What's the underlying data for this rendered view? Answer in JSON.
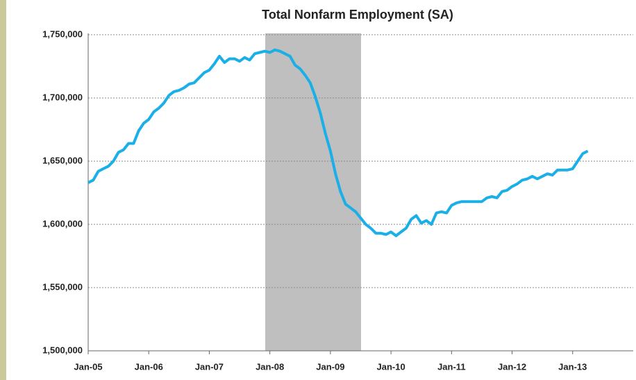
{
  "chart_data": {
    "type": "line",
    "title": "Total Nonfarm Employment (SA)",
    "categories": [
      "Jan-05",
      null,
      null,
      null,
      null,
      null,
      null,
      null,
      null,
      null,
      null,
      null,
      "Jan-06",
      null,
      null,
      null,
      null,
      null,
      null,
      null,
      null,
      null,
      null,
      null,
      "Jan-07",
      null,
      null,
      null,
      null,
      null,
      null,
      null,
      null,
      null,
      null,
      null,
      "Jan-08",
      null,
      null,
      null,
      null,
      null,
      null,
      null,
      null,
      null,
      null,
      null,
      "Jan-09",
      null,
      null,
      null,
      null,
      null,
      null,
      null,
      null,
      null,
      null,
      null,
      "Jan-10",
      null,
      null,
      null,
      null,
      null,
      null,
      null,
      null,
      null,
      null,
      null,
      "Jan-11",
      null,
      null,
      null,
      null,
      null,
      null,
      null,
      null,
      null,
      null,
      null,
      "Jan-12",
      null,
      null,
      null,
      null,
      null,
      null,
      null,
      null,
      null,
      null,
      null,
      "Jan-13",
      null,
      null,
      null,
      null,
      null,
      null,
      null,
      null,
      null,
      null,
      null
    ],
    "series": [
      {
        "color": "#1aafe6",
        "values": [
          1633000,
          1635000,
          1642000,
          1644000,
          1646000,
          1650000,
          1657000,
          1659000,
          1664000,
          1664000,
          1674000,
          1680000,
          1683000,
          1689000,
          1692000,
          1696000,
          1702000,
          1705000,
          1706000,
          1708000,
          1711000,
          1712000,
          1716000,
          1720000,
          1722000,
          1727000,
          1733000,
          1728000,
          1731000,
          1731000,
          1729000,
          1732000,
          1730000,
          1735000,
          1736000,
          1737000,
          1736000,
          1738000,
          1737000,
          1735000,
          1733000,
          1726000,
          1723000,
          1718000,
          1712000,
          1701000,
          1688000,
          1672000,
          1658000,
          1640000,
          1626000,
          1616000,
          1613000,
          1610000,
          1605000,
          1600000,
          1597000,
          1593000,
          1593000,
          1592000,
          1594000,
          1591000,
          1594000,
          1597000,
          1604000,
          1607000,
          1601000,
          1603000,
          1600000,
          1609000,
          1610000,
          1609000,
          1615000,
          1617000,
          1618000,
          1618000,
          1618000,
          1618000,
          1618000,
          1621000,
          1622000,
          1621000,
          1626000,
          1627000,
          1630000,
          1632000,
          1635000,
          1636000,
          1638000,
          1636000,
          1638000,
          1640000,
          1639000,
          1643000,
          1643000,
          1643000,
          1644000,
          1650000,
          1656000,
          1658000,
          null,
          null,
          null,
          null,
          null,
          null,
          null,
          null
        ]
      }
    ],
    "ylim": [
      1500000,
      1750000
    ],
    "yticks": [
      {
        "value": 1500000,
        "label": "1,500,000"
      },
      {
        "value": 1550000,
        "label": "1,550,000"
      },
      {
        "value": 1600000,
        "label": "1,600,000"
      },
      {
        "value": 1650000,
        "label": "1,650,000"
      },
      {
        "value": 1700000,
        "label": "1,700,000"
      },
      {
        "value": 1750000,
        "label": "1,750,000"
      }
    ],
    "grid": true
  }
}
